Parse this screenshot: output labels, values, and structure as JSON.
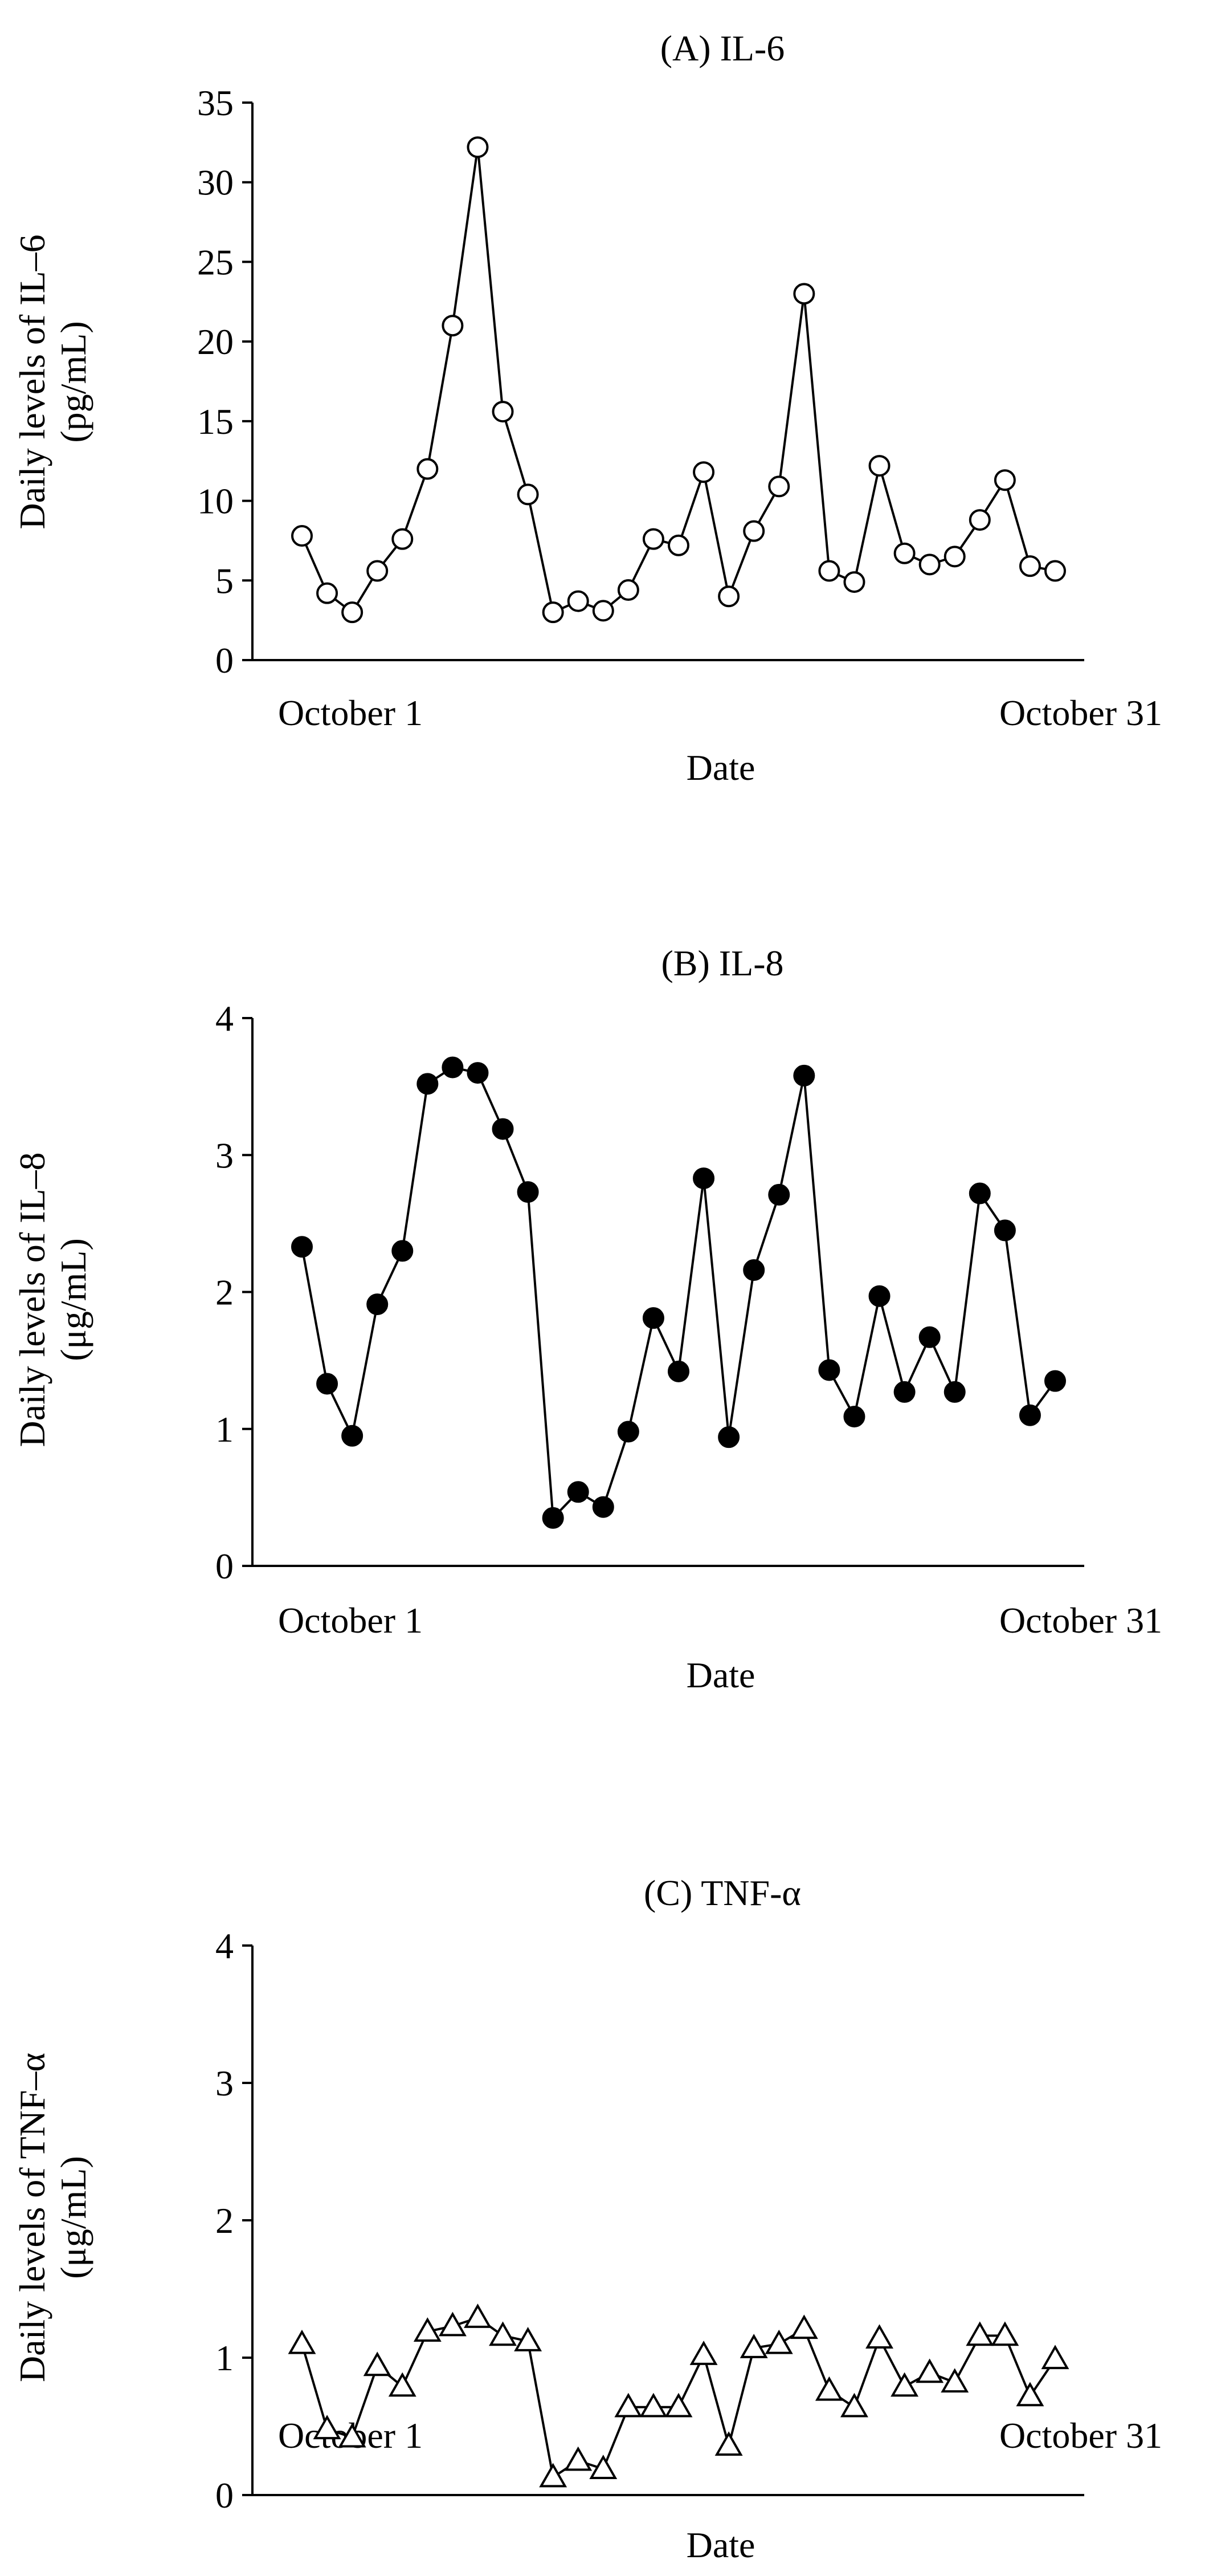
{
  "chart_data": [
    {
      "type": "line",
      "title": "(A) IL-6",
      "ylabel_line1": "Daily levels of IL–6",
      "ylabel_line2": "(pg/mL)",
      "xlabel": "Date",
      "x_tick_labels": [
        "October 1",
        "October 31"
      ],
      "y_ticks": [
        0,
        5,
        10,
        15,
        20,
        25,
        30,
        35
      ],
      "ylim": [
        0,
        35
      ],
      "marker": "open-circle",
      "values": [
        7.8,
        4.2,
        3.0,
        5.6,
        7.6,
        12.0,
        21.0,
        32.2,
        15.6,
        10.4,
        3.0,
        3.7,
        3.1,
        4.4,
        7.6,
        7.2,
        11.8,
        4.0,
        8.1,
        10.9,
        23.0,
        5.6,
        4.9,
        12.2,
        6.7,
        6.0,
        6.5,
        8.8,
        11.3,
        5.9,
        5.6
      ]
    },
    {
      "type": "line",
      "title": "(B) IL-8",
      "ylabel_line1": "Daily levels of IL–8",
      "ylabel_line2": "(μg/mL)",
      "xlabel": "Date",
      "x_tick_labels": [
        "October 1",
        "October 31"
      ],
      "y_ticks": [
        0,
        1,
        2,
        3,
        4
      ],
      "ylim": [
        0,
        4
      ],
      "marker": "filled-circle",
      "values": [
        2.33,
        1.33,
        0.95,
        1.91,
        2.3,
        3.52,
        3.64,
        3.6,
        3.19,
        2.73,
        0.35,
        0.54,
        0.43,
        0.98,
        1.81,
        1.42,
        2.83,
        0.94,
        2.16,
        2.71,
        3.58,
        1.43,
        1.09,
        1.97,
        1.27,
        1.67,
        1.27,
        2.72,
        2.45,
        1.1,
        1.35
      ]
    },
    {
      "type": "line",
      "title": "(C) TNF-α",
      "ylabel_line1": "Daily levels of  TNF–α",
      "ylabel_line2": "(μg/mL)",
      "xlabel": "Date",
      "x_tick_labels": [
        "October 1",
        "October 31"
      ],
      "y_ticks": [
        0,
        1,
        2,
        3,
        4
      ],
      "ylim": [
        0,
        4
      ],
      "marker": "open-triangle",
      "values": [
        1.1,
        0.48,
        0.42,
        0.94,
        0.79,
        1.19,
        1.23,
        1.29,
        1.16,
        1.12,
        0.13,
        0.25,
        0.19,
        0.64,
        0.64,
        0.64,
        1.02,
        0.36,
        1.07,
        1.1,
        1.21,
        0.76,
        0.64,
        1.14,
        0.79,
        0.89,
        0.82,
        1.16,
        1.16,
        0.72,
        0.99
      ]
    }
  ]
}
